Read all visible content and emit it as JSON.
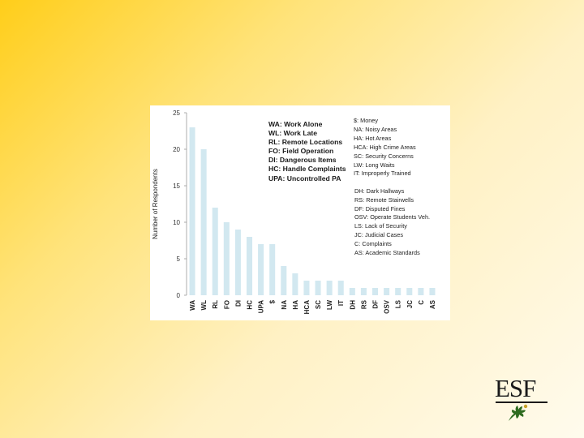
{
  "slide": {
    "logo_text": "ESF",
    "logo_leaf_color": "#2e6b1f"
  },
  "chart_data": {
    "type": "bar",
    "title": "",
    "xlabel": "",
    "ylabel": "Number of Respondents",
    "ylim": [
      0,
      25
    ],
    "yticks": [
      0,
      5,
      10,
      15,
      20,
      25
    ],
    "grid": false,
    "bar_color": "#d2e8f0",
    "categories": [
      "WA",
      "WL",
      "RL",
      "FO",
      "DI",
      "HC",
      "UPA",
      "$",
      "NA",
      "HA",
      "HCA",
      "SC",
      "LW",
      "IT",
      "DH",
      "RS",
      "DF",
      "OSV",
      "LS",
      "JC",
      "C",
      "AS"
    ],
    "values": [
      23,
      20,
      12,
      10,
      9,
      8,
      7,
      7,
      4,
      3,
      2,
      2,
      2,
      2,
      1,
      1,
      1,
      1,
      1,
      1,
      1,
      1
    ],
    "legend_main": [
      "WA: Work Alone",
      "WL: Work Late",
      "RL: Remote Locations",
      "FO: Field Operation",
      "DI: Dangerous Items",
      "HC: Handle Complaints",
      "UPA: Uncontrolled PA"
    ],
    "legend_top": [
      "$: Money",
      "NA: Noisy Areas",
      "HA: Hot Areas",
      "HCA: High Crime Areas",
      "SC: Security Concerns",
      "LW: Long Waits",
      "IT: Improperly Trained"
    ],
    "legend_bottom": [
      "DH: Dark Hallways",
      "RS: Remote Stairwells",
      "DF: Disputed Fines",
      "OSV: Operate Students Veh.",
      "LS: Lack of Security",
      "JC: Judicial Cases",
      "C: Complaints",
      "AS: Academic Standards"
    ]
  }
}
